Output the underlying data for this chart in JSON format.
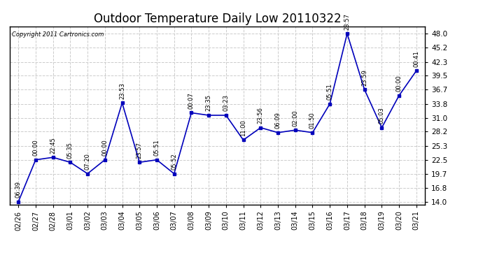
{
  "title": "Outdoor Temperature Daily Low 20110322",
  "copyright_text": "Copyright 2011 Cartronics.com",
  "x_labels": [
    "02/26",
    "02/27",
    "02/28",
    "03/01",
    "03/02",
    "03/03",
    "03/04",
    "03/05",
    "03/06",
    "03/07",
    "03/08",
    "03/09",
    "03/10",
    "03/11",
    "03/12",
    "03/13",
    "03/14",
    "03/15",
    "03/16",
    "03/17",
    "03/18",
    "03/19",
    "03/20",
    "03/21"
  ],
  "y_values": [
    14.0,
    22.5,
    23.0,
    22.0,
    19.7,
    22.5,
    34.0,
    22.0,
    22.5,
    19.7,
    32.0,
    31.5,
    31.5,
    26.5,
    29.0,
    28.0,
    28.5,
    28.0,
    33.8,
    48.0,
    36.7,
    29.0,
    35.5,
    40.5
  ],
  "time_labels": [
    "06:39",
    "00:00",
    "22:45",
    "05:35",
    "07:20",
    "00:00",
    "23:53",
    "23:57",
    "05:51",
    "05:52",
    "00:07",
    "23:35",
    "03:23",
    "11:00",
    "23:56",
    "06:09",
    "02:00",
    "01:50",
    "05:51",
    "23:57",
    "23:59",
    "05:03",
    "00:00",
    "00:41"
  ],
  "line_color": "#0000bb",
  "marker_color": "#0000bb",
  "background_color": "#ffffff",
  "grid_color": "#cccccc",
  "title_fontsize": 12,
  "ytick_labels": [
    "14.0",
    "16.8",
    "19.7",
    "22.5",
    "25.3",
    "28.2",
    "31.0",
    "33.8",
    "36.7",
    "39.5",
    "42.3",
    "45.2",
    "48.0"
  ],
  "ytick_values": [
    14.0,
    16.8,
    19.7,
    22.5,
    25.3,
    28.2,
    31.0,
    33.8,
    36.7,
    39.5,
    42.3,
    45.2,
    48.0
  ],
  "ylim": [
    13.5,
    49.5
  ]
}
